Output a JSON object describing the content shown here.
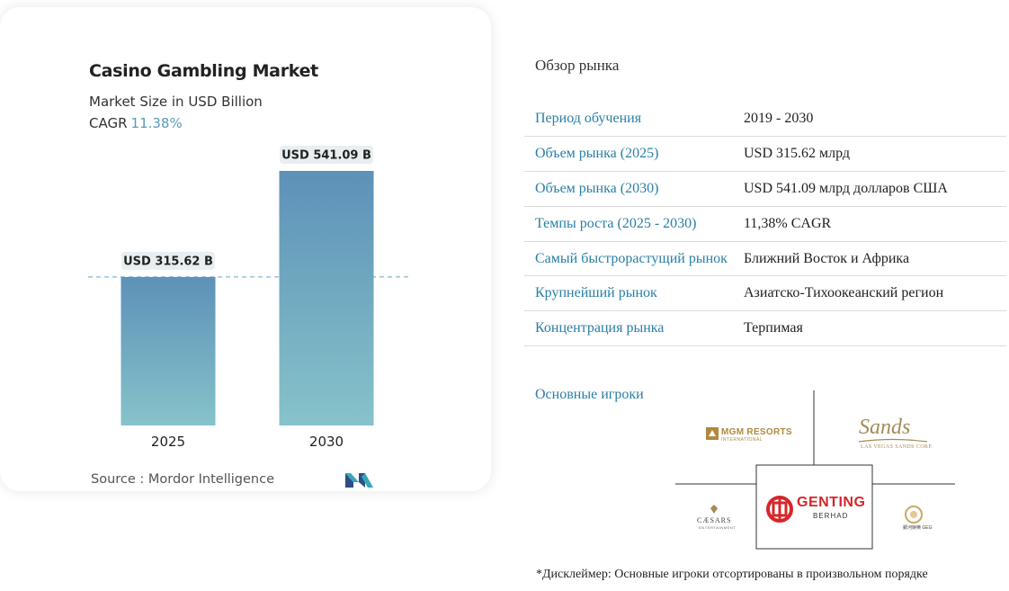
{
  "card": {
    "title": "Casino Gambling Market",
    "subtitle": "Market Size in USD Billion",
    "cagr_label": "CAGR",
    "cagr_value": "11.38%",
    "source": "Source :  Mordor Intelligence"
  },
  "chart_data": {
    "type": "bar",
    "title": "Casino Gambling Market",
    "subtitle": "Market Size in USD Billion",
    "categories": [
      "2025",
      "2030"
    ],
    "values": [
      315.62,
      541.09
    ],
    "data_labels": [
      "USD 315.62 B",
      "USD 541.09 B"
    ],
    "xlabel": "",
    "ylabel": "",
    "grid": false,
    "reference_line_value": 315.62,
    "colors": {
      "bar_top": "#5d91b8",
      "bar_bottom": "#86c3ca",
      "ref_line": "#6aa6c4"
    }
  },
  "overview": {
    "title": "Обзор рынка",
    "rows": [
      {
        "key": "Период обучения",
        "value": "2019 - 2030"
      },
      {
        "key": "Объем рынка (2025)",
        "value": "USD 315.62 млрд"
      },
      {
        "key": "Объем рынка (2030)",
        "value": "USD 541.09 млрд долларов США"
      },
      {
        "key": "Темпы роста (2025 - 2030)",
        "value": "11,38% CAGR"
      },
      {
        "key": "Самый быстрорастущий рынок",
        "value": "Ближний Восток и Африка"
      },
      {
        "key": "Крупнейший рынок",
        "value": "Азиатско-Тихоокеанский регион"
      },
      {
        "key": "Концентрация рынка",
        "value": "Терпимая"
      }
    ],
    "players_title": "Основные игроки",
    "players": {
      "mgm": "MGM RESORTS",
      "mgm_sub": "INTERNATIONAL",
      "sands": "Sands",
      "sands_sub": "LAS VEGAS SANDS CORP.",
      "genting": "GENTING",
      "genting_sub": "BERHAD",
      "caesars": "CÆSARS",
      "caesars_sub": "ENTERTAINMENT",
      "geg": "銀河娛樂 GEG"
    },
    "disclaimer": "*Дисклеймер: Основные игроки отсортированы в произвольном порядке"
  },
  "colors": {
    "accent": "#2a7fa6",
    "genting_red": "#d6262b",
    "sands_gold": "#a58a57",
    "mgm_gold": "#b08a3c"
  }
}
